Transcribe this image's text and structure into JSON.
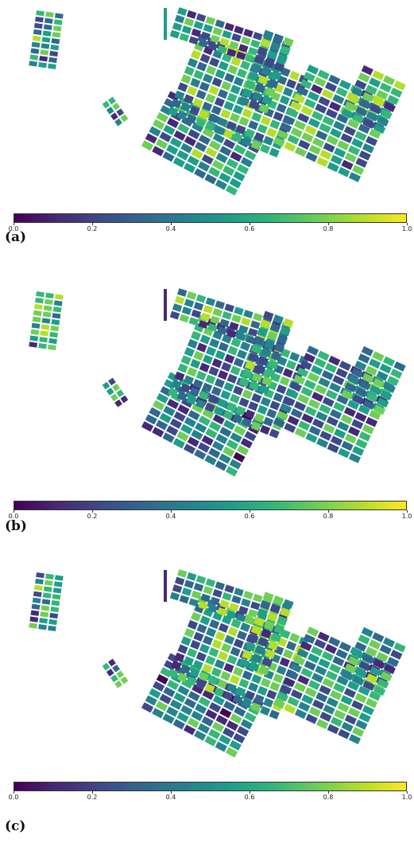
{
  "colorbar": {
    "ticks": [
      "0.0",
      "0.2",
      "0.4",
      "0.6",
      "0.8",
      "1.0"
    ],
    "colors": [
      "#440154",
      "#482878",
      "#3e4989",
      "#31688e",
      "#26828e",
      "#1f9e89",
      "#35b779",
      "#6ece58",
      "#b5de2b",
      "#fde725"
    ]
  },
  "panels": [
    {
      "label": "(a)"
    },
    {
      "label": "(b)"
    },
    {
      "label": "(c)"
    }
  ]
}
